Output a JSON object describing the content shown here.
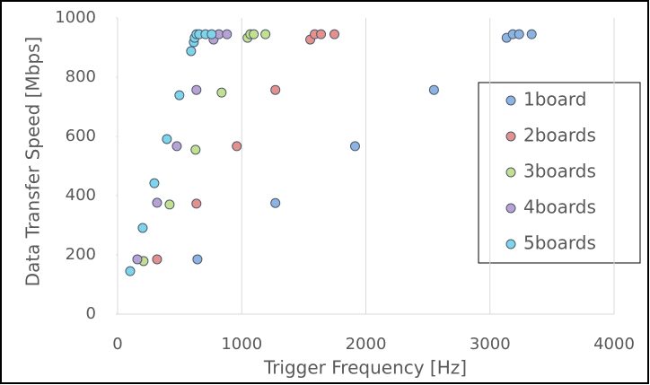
{
  "chart_data": {
    "type": "scatter",
    "x_label": "Trigger Frequency [Hz]",
    "y_label": "Data Transfer Speed [Mbps]",
    "xlim": [
      0,
      4000
    ],
    "xticks": [
      0,
      1000,
      2000,
      3000,
      4000
    ],
    "ylim": [
      0,
      1000
    ],
    "yticks": [
      0,
      200,
      400,
      600,
      800,
      1000
    ],
    "grid": "x",
    "legend": "right",
    "series": [
      {
        "name": "1board",
        "color": "#8db3e2",
        "x": [
          643,
          1271,
          1913,
          2549,
          3134,
          3184,
          3235,
          3336
        ],
        "values": [
          185,
          375,
          567,
          757,
          933,
          945,
          945,
          945
        ]
      },
      {
        "name": "2boards",
        "color": "#e6908e",
        "x": [
          318,
          635,
          960,
          1271,
          1552,
          1588,
          1639,
          1747
        ],
        "values": [
          185,
          373,
          567,
          757,
          927,
          945,
          945,
          945
        ]
      },
      {
        "name": "3boards",
        "color": "#c3df8f",
        "x": [
          209,
          419,
          628,
          838,
          1047,
          1069,
          1097,
          1191
        ],
        "values": [
          179,
          370,
          555,
          748,
          933,
          945,
          945,
          945
        ]
      },
      {
        "name": "4boards",
        "color": "#b8a2d4",
        "x": [
          159,
          318,
          477,
          635,
          773,
          816,
          881
        ],
        "values": [
          185,
          376,
          567,
          757,
          927,
          945,
          945
        ]
      },
      {
        "name": "5boards",
        "color": "#7fd3ea",
        "x": [
          101,
          202,
          296,
          397,
          498,
          592,
          614,
          621,
          635,
          657,
          708,
          758
        ],
        "values": [
          145,
          291,
          442,
          591,
          739,
          888,
          918,
          933,
          945,
          945,
          945,
          945
        ]
      }
    ]
  }
}
